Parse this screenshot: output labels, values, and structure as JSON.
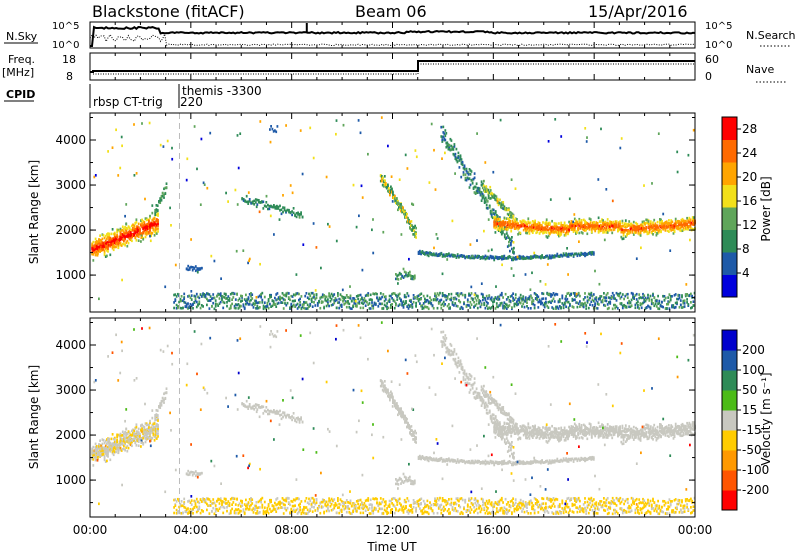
{
  "header": {
    "station": "Blackstone (fitACF)",
    "beam": "Beam 06",
    "date": "15/Apr/2016"
  },
  "panels": {
    "nsky": {
      "left_label": "N.Sky",
      "right_label": "N.Search",
      "tick_top": "10^5",
      "tick_bottom": "10^0"
    },
    "freq": {
      "left_label_1": "Freq.",
      "left_label_2": "[MHz]",
      "left_ticks": [
        "18",
        "8"
      ],
      "right_label": "Nave",
      "right_ticks": [
        "60",
        "0"
      ]
    },
    "cpid": {
      "label": "CPID",
      "segments": [
        "rbsp CT-trig",
        "themis -3300",
        "220"
      ]
    }
  },
  "colors": {
    "power_scale": [
      "#0000dd",
      "#1e5aa8",
      "#2e8b57",
      "#5fa55a",
      "#f2e01a",
      "#ffa500",
      "#ff6a00",
      "#ff0000"
    ],
    "velocity_scale": [
      "#ff0000",
      "#ff5500",
      "#ff9900",
      "#ffcc00",
      "#c8c8c0",
      "#4cbb17",
      "#2e8b57",
      "#1e5aa8",
      "#0000cc"
    ],
    "ground_scatter": "#c8c8c0"
  },
  "chart_data": [
    {
      "type": "heatmap",
      "name": "power",
      "x": [
        "00:00",
        "04:00",
        "08:00",
        "12:00",
        "16:00",
        "20:00",
        "00:00"
      ],
      "xlim_hours": [
        0,
        24
      ],
      "ylabel": "Slant Range [km]",
      "yticks": [
        1000,
        2000,
        3000,
        4000
      ],
      "ylim": [
        180,
        4600
      ],
      "colorbar_label": "Power [dB]",
      "colorbar_ticks": [
        4,
        8,
        12,
        16,
        20,
        24,
        28
      ],
      "colorbar_range": [
        0,
        30
      ]
    },
    {
      "type": "heatmap",
      "name": "velocity",
      "x": [
        "00:00",
        "04:00",
        "08:00",
        "12:00",
        "16:00",
        "20:00",
        "00:00"
      ],
      "xlim_hours": [
        0,
        24
      ],
      "xlabel": "Time UT",
      "ylabel": "Slant Range [km]",
      "yticks": [
        1000,
        2000,
        3000,
        4000
      ],
      "ylim": [
        180,
        4600
      ],
      "colorbar_label": "Velocity [m s⁻¹]",
      "colorbar_ticks": [
        200,
        100,
        50,
        15,
        -15,
        -50,
        -100,
        -200
      ]
    }
  ]
}
